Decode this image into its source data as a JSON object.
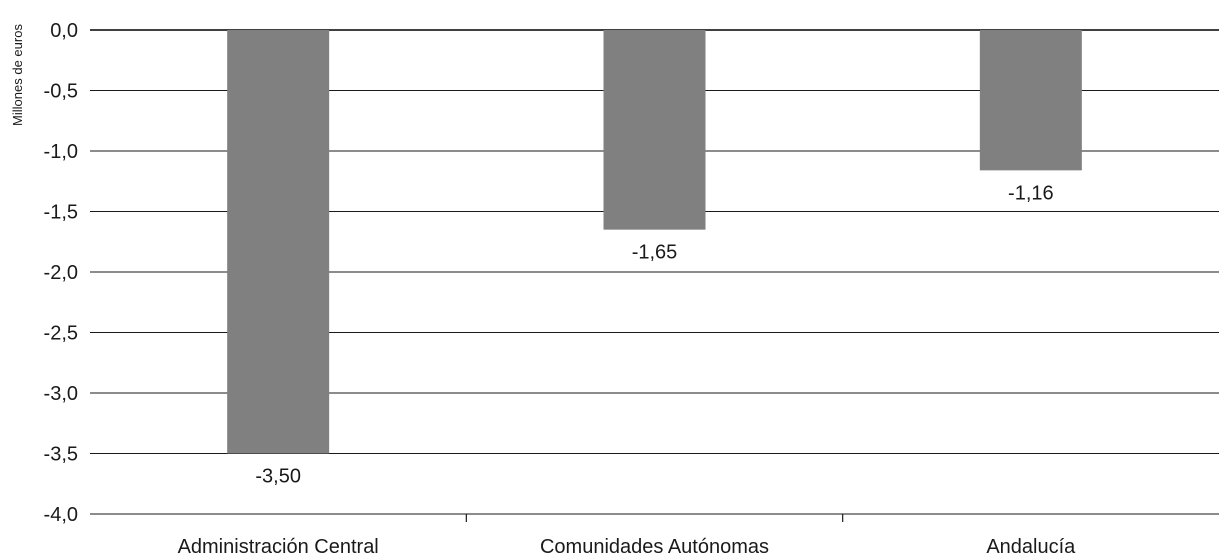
{
  "chart_data": {
    "type": "bar",
    "categories": [
      "Administración Central",
      "Comunidades Autónomas",
      "Andalucía"
    ],
    "values": [
      -3.5,
      -1.65,
      -1.16
    ],
    "data_labels": [
      "-3,50",
      "-1,65",
      "-1,16"
    ],
    "title": "",
    "xlabel": "",
    "ylabel": "Millones de euros",
    "ylim": [
      -4.0,
      0.0
    ],
    "yticks": [
      0.0,
      -0.5,
      -1.0,
      -1.5,
      -2.0,
      -2.5,
      -3.0,
      -3.5,
      -4.0
    ],
    "ytick_labels": [
      "0,0",
      "-0,5",
      "-1,0",
      "-1,5",
      "-2,0",
      "-2,5",
      "-3,0",
      "-3,5",
      "-4,0"
    ],
    "grid": true,
    "legend": "none",
    "bar_color": "#808080"
  }
}
